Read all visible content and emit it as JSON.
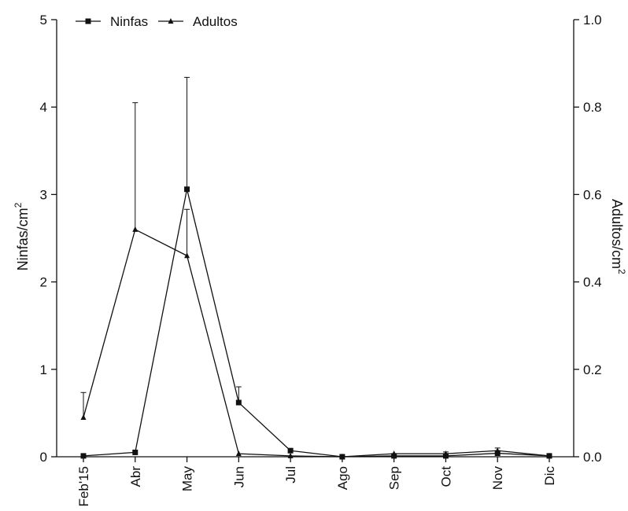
{
  "chart_data": {
    "type": "line",
    "categories": [
      "Feb'15",
      "Abr",
      "May",
      "Jun",
      "Jul",
      "Ago",
      "Sep",
      "Oct",
      "Nov",
      "Dic"
    ],
    "series": [
      {
        "name": "Ninfas",
        "axis": "left",
        "marker": "square",
        "values": [
          0.01,
          0.05,
          3.06,
          0.62,
          0.07,
          0.0,
          0.01,
          0.01,
          0.04,
          0.01
        ],
        "error_upper": [
          0.01,
          0.05,
          4.34,
          0.8,
          0.09,
          0.0,
          0.02,
          0.02,
          0.07,
          0.02
        ]
      },
      {
        "name": "Adultos",
        "axis": "right",
        "marker": "triangle",
        "values": [
          0.09,
          0.52,
          0.46,
          0.007,
          0.002,
          0.0,
          0.007,
          0.007,
          0.014,
          0.002
        ],
        "error_upper": [
          0.147,
          0.81,
          0.566,
          0.007,
          0.002,
          0.0,
          0.007,
          0.011,
          0.02,
          0.002
        ]
      }
    ],
    "y_left": {
      "label": "Ninfas/cm",
      "superscript": "2",
      "ylim": [
        0,
        5
      ],
      "ticks": [
        "0",
        "1",
        "2",
        "3",
        "4",
        "5"
      ]
    },
    "y_right": {
      "label": "Adultos/cm",
      "superscript": "2",
      "ylim": [
        0,
        1.0
      ],
      "ticks": [
        "0.0",
        "0.2",
        "0.4",
        "0.6",
        "0.8",
        "1.0"
      ]
    },
    "xlabel": "",
    "legend_position": "top-left",
    "grid": false
  }
}
